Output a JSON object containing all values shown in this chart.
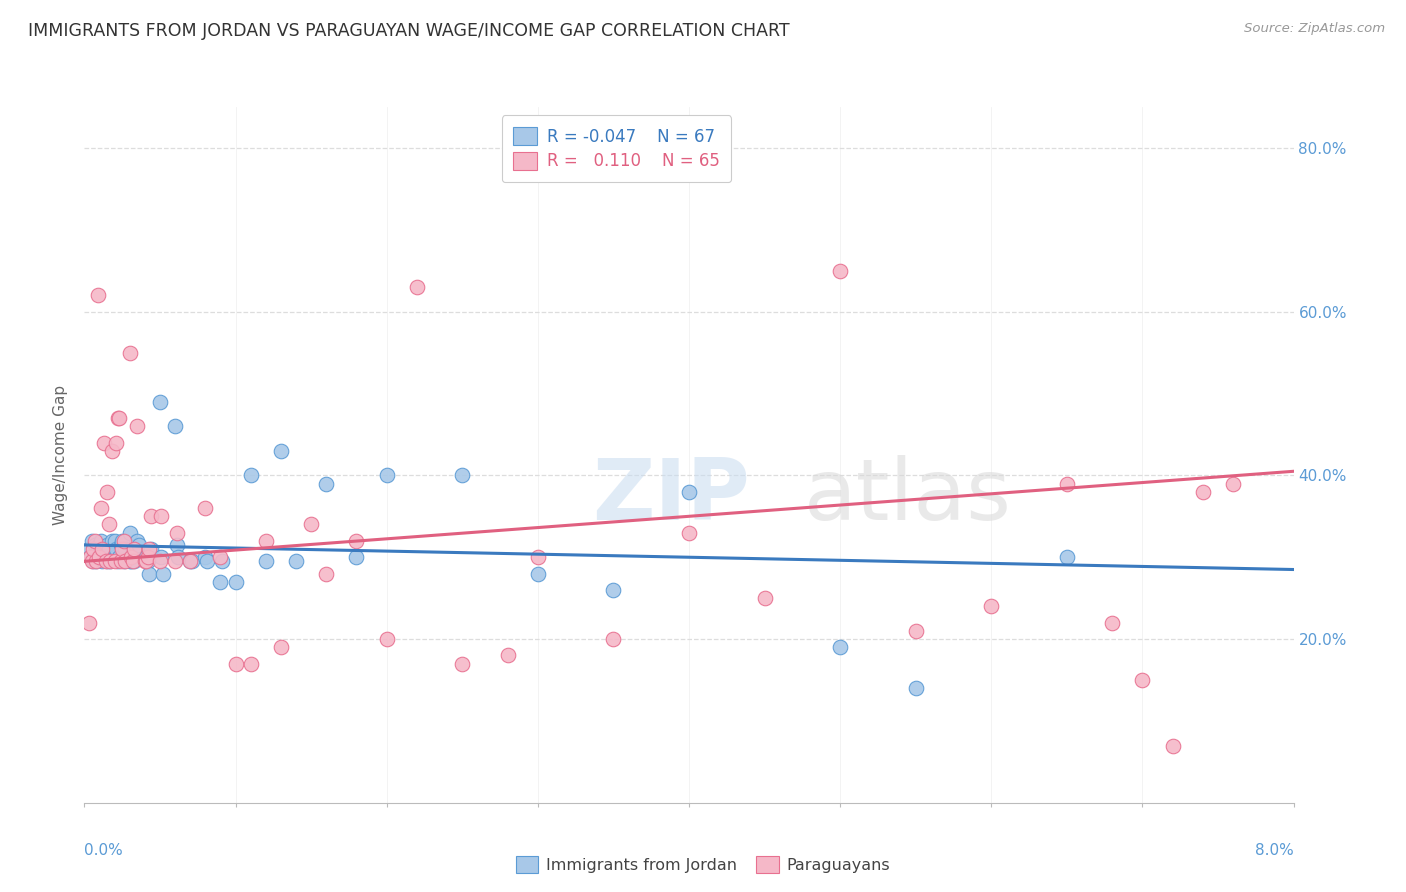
{
  "title": "IMMIGRANTS FROM JORDAN VS PARAGUAYAN WAGE/INCOME GAP CORRELATION CHART",
  "source": "Source: ZipAtlas.com",
  "ylabel": "Wage/Income Gap",
  "xmin": 0.0,
  "xmax": 0.08,
  "ymin": 0.0,
  "ymax": 0.85,
  "color_blue": "#a8c8e8",
  "color_blue_edge": "#5b9bd5",
  "color_pink": "#f5b8c8",
  "color_pink_edge": "#e87090",
  "color_blue_line": "#3a7abf",
  "color_pink_line": "#e06080",
  "color_title": "#333333",
  "color_source": "#999999",
  "color_ytick": "#5b9bd5",
  "color_grid": "#dddddd",
  "blue_x": [
    0.0003,
    0.0004,
    0.0005,
    0.0006,
    0.0007,
    0.0007,
    0.0008,
    0.0009,
    0.001,
    0.001,
    0.0011,
    0.0012,
    0.0013,
    0.0014,
    0.0015,
    0.0015,
    0.0016,
    0.0017,
    0.0018,
    0.002,
    0.002,
    0.0021,
    0.0022,
    0.0023,
    0.0024,
    0.0025,
    0.0026,
    0.0027,
    0.003,
    0.003,
    0.0031,
    0.0032,
    0.0033,
    0.0035,
    0.0036,
    0.004,
    0.0041,
    0.0042,
    0.0043,
    0.0044,
    0.005,
    0.0051,
    0.0052,
    0.006,
    0.0061,
    0.0062,
    0.007,
    0.0071,
    0.008,
    0.0081,
    0.009,
    0.0091,
    0.01,
    0.011,
    0.012,
    0.013,
    0.014,
    0.016,
    0.018,
    0.02,
    0.025,
    0.03,
    0.035,
    0.04,
    0.05,
    0.055,
    0.065
  ],
  "blue_y": [
    0.31,
    0.3,
    0.32,
    0.295,
    0.3,
    0.315,
    0.295,
    0.31,
    0.3,
    0.315,
    0.32,
    0.295,
    0.3,
    0.31,
    0.315,
    0.295,
    0.31,
    0.295,
    0.32,
    0.3,
    0.32,
    0.31,
    0.295,
    0.3,
    0.315,
    0.32,
    0.295,
    0.31,
    0.295,
    0.33,
    0.295,
    0.31,
    0.295,
    0.32,
    0.315,
    0.3,
    0.3,
    0.295,
    0.28,
    0.31,
    0.49,
    0.3,
    0.28,
    0.46,
    0.315,
    0.3,
    0.295,
    0.295,
    0.3,
    0.295,
    0.27,
    0.295,
    0.27,
    0.4,
    0.295,
    0.43,
    0.295,
    0.39,
    0.3,
    0.4,
    0.4,
    0.28,
    0.26,
    0.38,
    0.19,
    0.14,
    0.3
  ],
  "pink_x": [
    0.0003,
    0.0004,
    0.0005,
    0.0006,
    0.0007,
    0.0008,
    0.0009,
    0.001,
    0.0011,
    0.0012,
    0.0013,
    0.0014,
    0.0015,
    0.0016,
    0.0017,
    0.0018,
    0.002,
    0.0021,
    0.0022,
    0.0023,
    0.0024,
    0.0025,
    0.0026,
    0.0027,
    0.003,
    0.0031,
    0.0032,
    0.0033,
    0.0035,
    0.004,
    0.0041,
    0.0042,
    0.0043,
    0.0044,
    0.005,
    0.0051,
    0.006,
    0.0061,
    0.007,
    0.008,
    0.009,
    0.01,
    0.011,
    0.012,
    0.013,
    0.015,
    0.016,
    0.018,
    0.02,
    0.022,
    0.025,
    0.028,
    0.03,
    0.035,
    0.04,
    0.045,
    0.05,
    0.055,
    0.06,
    0.065,
    0.068,
    0.07,
    0.072,
    0.074,
    0.076
  ],
  "pink_y": [
    0.22,
    0.3,
    0.295,
    0.31,
    0.32,
    0.295,
    0.62,
    0.3,
    0.36,
    0.31,
    0.44,
    0.295,
    0.38,
    0.34,
    0.295,
    0.43,
    0.295,
    0.44,
    0.47,
    0.47,
    0.295,
    0.31,
    0.32,
    0.295,
    0.55,
    0.3,
    0.295,
    0.31,
    0.46,
    0.295,
    0.295,
    0.3,
    0.31,
    0.35,
    0.295,
    0.35,
    0.295,
    0.33,
    0.295,
    0.36,
    0.3,
    0.17,
    0.17,
    0.32,
    0.19,
    0.34,
    0.28,
    0.32,
    0.2,
    0.63,
    0.17,
    0.18,
    0.3,
    0.2,
    0.33,
    0.25,
    0.65,
    0.21,
    0.24,
    0.39,
    0.22,
    0.15,
    0.07,
    0.38,
    0.39
  ],
  "blue_line_x0": 0.0,
  "blue_line_x1": 0.08,
  "blue_line_y0": 0.315,
  "blue_line_y1": 0.285,
  "pink_line_x0": 0.0,
  "pink_line_x1": 0.08,
  "pink_line_y0": 0.295,
  "pink_line_y1": 0.405
}
